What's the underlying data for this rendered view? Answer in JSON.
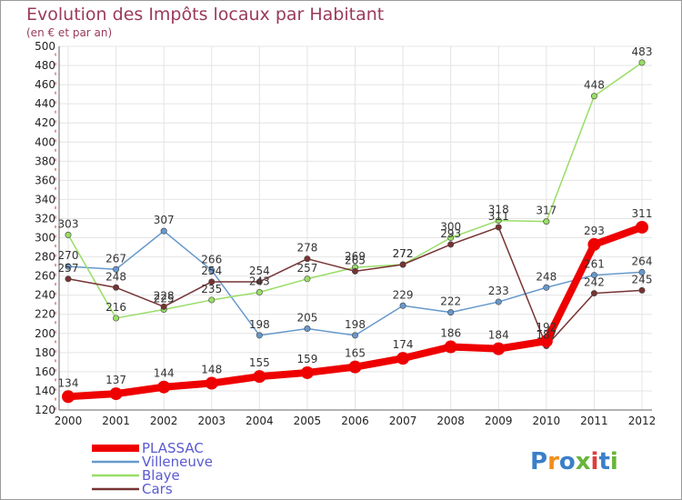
{
  "chart_data": {
    "type": "line",
    "title": "Evolution des Impôts locaux par Habitant",
    "subtitle": "(en € et par an)",
    "xlabel": "",
    "ylabel": "",
    "ylim": [
      120,
      500
    ],
    "ytick_step": 20,
    "grid": true,
    "legend_position": "bottom-left",
    "categories": [
      "2000",
      "2001",
      "2002",
      "2003",
      "2004",
      "2005",
      "2006",
      "2007",
      "2008",
      "2009",
      "2010",
      "2011",
      "2012"
    ],
    "series": [
      {
        "name": "PLASSAC",
        "color": "#ee0000",
        "values": [
          134,
          137,
          144,
          148,
          155,
          159,
          165,
          174,
          186,
          184,
          192,
          293,
          311
        ]
      },
      {
        "name": "Villeneuve",
        "color": "#6699cc",
        "values": [
          270,
          267,
          307,
          266,
          198,
          205,
          198,
          229,
          222,
          233,
          248,
          261,
          264
        ]
      },
      {
        "name": "Blaye",
        "color": "#99dd66",
        "values": [
          303,
          216,
          225,
          235,
          243,
          257,
          269,
          272,
          300,
          318,
          317,
          448,
          483
        ]
      },
      {
        "name": "Cars",
        "color": "#773333",
        "values": [
          257,
          248,
          228,
          254,
          254,
          278,
          265,
          272,
          293,
          311,
          187,
          242,
          245
        ]
      }
    ]
  },
  "logo": {
    "text": "Proxiti",
    "colors": [
      "#3a7fc9",
      "#f28c1a",
      "#3a7fc9",
      "#69b43a",
      "#e23b3b",
      "#3a7fc9",
      "#69b43a"
    ]
  }
}
